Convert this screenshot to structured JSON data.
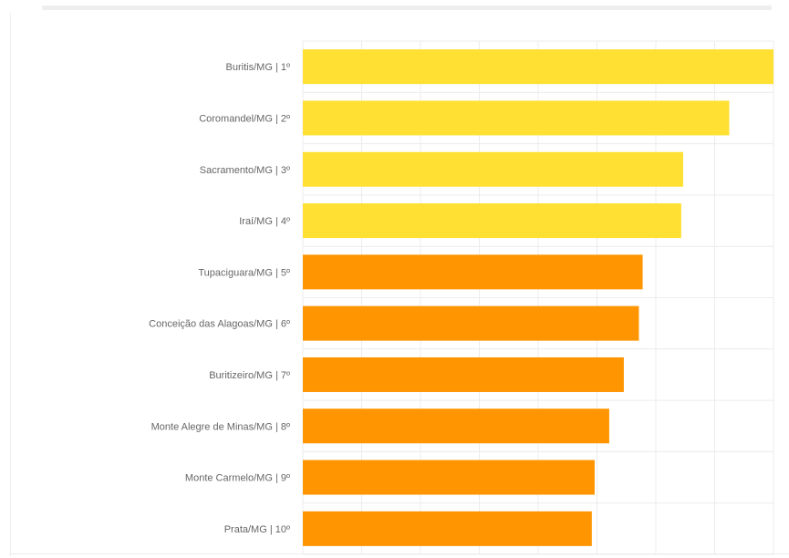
{
  "chart_data": {
    "type": "bar",
    "orientation": "horizontal",
    "categories": [
      "Buritis/MG | 1º",
      "Coromandel/MG | 2º",
      "Sacramento/MG | 3º",
      "Iraí/MG | 4º",
      "Tupaciguara/MG | 5º",
      "Conceição das Alagoas/MG | 6º",
      "Buritizeiro/MG | 7º",
      "Monte Alegre de Minas/MG | 8º",
      "Monte Carmelo/MG | 9º",
      "Prata/MG | 10º"
    ],
    "values": [
      100,
      90.6,
      80.8,
      80.4,
      72.2,
      71.4,
      68.2,
      65.1,
      62.0,
      61.4
    ],
    "bar_colors": [
      "#ffe033",
      "#ffe033",
      "#ffe033",
      "#ffe033",
      "#ff9500",
      "#ff9500",
      "#ff9500",
      "#ff9500",
      "#ff9500",
      "#ff9500"
    ],
    "xlim": [
      0,
      100
    ],
    "grid": true,
    "title": "",
    "xlabel": "",
    "ylabel": ""
  },
  "colors": {
    "highlight": "#ffe033",
    "standard": "#ff9500",
    "grid": "#ececec",
    "label": "#666666"
  }
}
